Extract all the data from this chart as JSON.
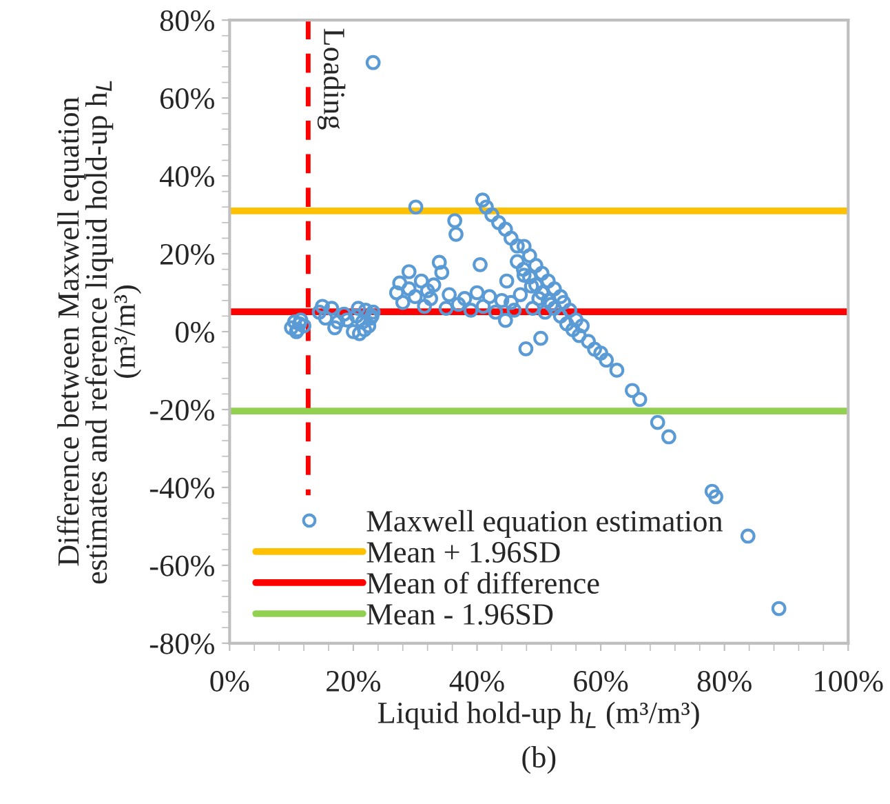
{
  "chart_data": {
    "type": "scatter",
    "xlabel": "Liquid hold-up h$_{L}$ (m³/m³)",
    "ylabel": "Difference between Maxwell equation\nestimates and reference liquid hold-up h$_{L}$\n(m³/m³)",
    "annotations": [
      "(b)"
    ],
    "xlim": [
      0,
      100
    ],
    "ylim": [
      -80,
      80
    ],
    "xticks": [
      {
        "value": 0,
        "label": "0%"
      },
      {
        "value": 20,
        "label": "20%"
      },
      {
        "value": 40,
        "label": "40%"
      },
      {
        "value": 60,
        "label": "60%"
      },
      {
        "value": 80,
        "label": "80%"
      },
      {
        "value": 100,
        "label": "100%"
      }
    ],
    "yticks": [
      {
        "value": -80,
        "label": "-80%"
      },
      {
        "value": -60,
        "label": "-60%"
      },
      {
        "value": -40,
        "label": "-40%"
      },
      {
        "value": -20,
        "label": "-20%"
      },
      {
        "value": 0,
        "label": "0%"
      },
      {
        "value": 20,
        "label": "20%"
      },
      {
        "value": 40,
        "label": "40%"
      },
      {
        "value": 60,
        "label": "60%"
      },
      {
        "value": 80,
        "label": "80%"
      }
    ],
    "marker": "circle",
    "legend": "bottom",
    "grid": false,
    "series": [
      {
        "name": "Maxwell equation estimation",
        "color": "#5b9bd5",
        "x": [
          10.0,
          10.5,
          11.0,
          11.5,
          12.0,
          10.8,
          11.3,
          14.5,
          15.5,
          16.5,
          17.5,
          18.5,
          15.0,
          17.0,
          19.0,
          20.0,
          20.5,
          21.0,
          21.5,
          22.0,
          22.5,
          23.0,
          20.8,
          21.8,
          22.8,
          23.2,
          23.2,
          27.0,
          27.5,
          28.0,
          29.0,
          29.0,
          30.0,
          30.1,
          31.0,
          31.5,
          32.0,
          32.5,
          33.0,
          33.9,
          34.3,
          35.0,
          35.5,
          36.4,
          36.6,
          37.0,
          38.0,
          39.0,
          40.0,
          40.5,
          41.0,
          42.0,
          43.0,
          44.0,
          44.6,
          44.8,
          45.5,
          46.0,
          47.0,
          47.6,
          47.9,
          48.8,
          49.0,
          50.0,
          50.3,
          51.0,
          52.0,
          40.9,
          41.5,
          42.4,
          43.5,
          44.6,
          45.5,
          46.5,
          47.6,
          48.5,
          49.5,
          50.5,
          51.5,
          52.5,
          53.5,
          54.0,
          55.0,
          56.0,
          46.5,
          47.5,
          48.5,
          49.5,
          50.5,
          51.5,
          52.5,
          53.5,
          54.5,
          55.5,
          56.5,
          57.0,
          58.0,
          59.0,
          60.0,
          60.9,
          62.6,
          65.1,
          66.3,
          69.2,
          71.0,
          78.0,
          78.6,
          83.8,
          88.8
        ],
        "values": [
          1.0,
          2.5,
          0.5,
          3.0,
          1.5,
          0.0,
          2.0,
          5.0,
          3.5,
          6.0,
          2.5,
          4.5,
          6.5,
          1.0,
          3.0,
          0.0,
          4.0,
          -0.5,
          2.5,
          5.5,
          1.5,
          4.0,
          6.0,
          0.5,
          3.5,
          69.1,
          5.0,
          10.0,
          12.5,
          7.5,
          11.0,
          15.4,
          9.0,
          32.0,
          13.0,
          6.5,
          10.5,
          8.5,
          12.0,
          17.8,
          15.2,
          6.0,
          9.5,
          28.5,
          25.0,
          7.0,
          8.5,
          5.5,
          10.0,
          17.2,
          6.5,
          9.0,
          5.0,
          8.0,
          2.9,
          13.0,
          7.5,
          5.5,
          9.5,
          14.5,
          -4.4,
          11.7,
          6.0,
          8.5,
          -1.7,
          5.0,
          7.0,
          33.8,
          32.0,
          30.0,
          28.0,
          26.3,
          24.0,
          22.0,
          21.9,
          19.5,
          17.0,
          15.0,
          13.0,
          11.0,
          9.0,
          7.5,
          5.5,
          3.0,
          18.0,
          16.0,
          14.0,
          12.0,
          10.0,
          8.0,
          6.0,
          4.0,
          2.0,
          0.5,
          -1.0,
          1.5,
          -2.5,
          -4.5,
          -5.5,
          -7.3,
          -9.9,
          -15.1,
          -17.4,
          -23.3,
          -27.0,
          -41.0,
          -42.4,
          -52.5,
          -71.1
        ]
      }
    ],
    "ref_lines": [
      {
        "axis": "y",
        "value": 31,
        "label": "Mean + 1.96SD",
        "color": "#ffc000",
        "line_style": "solid"
      },
      {
        "axis": "y",
        "value": 5.1,
        "label": "Mean of difference",
        "color": "#ff0000",
        "line_style": "solid"
      },
      {
        "axis": "y",
        "value": -20.4,
        "label": "Mean - 1.96SD",
        "color": "#92d050",
        "line_style": "solid"
      },
      {
        "axis": "x",
        "value": 12.7,
        "label": "Loading",
        "color": "#ff0000",
        "line_style": "dashed"
      }
    ]
  }
}
